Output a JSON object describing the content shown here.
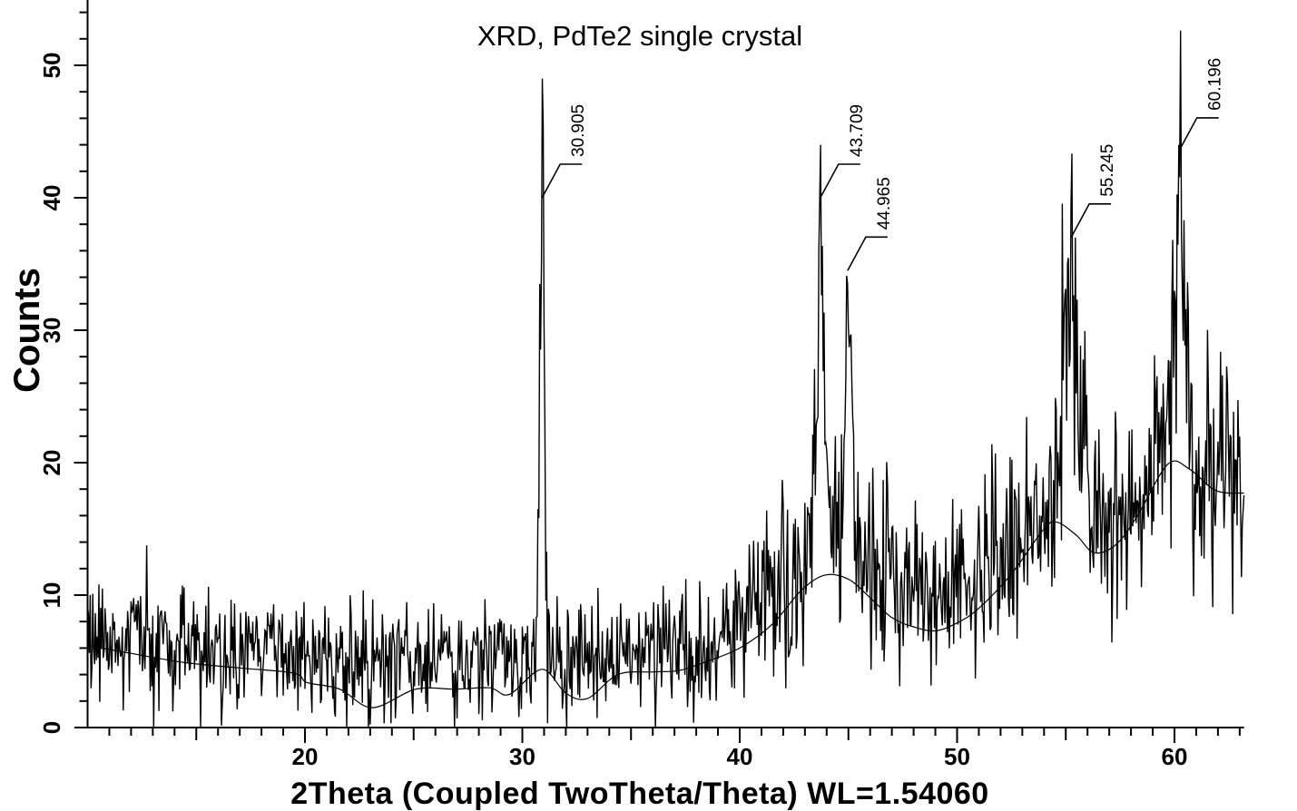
{
  "chart_data": {
    "type": "line",
    "title": "XRD, PdTe2 single crystal",
    "xlabel": "2Theta (Coupled TwoTheta/Theta) WL=1.54060",
    "ylabel": "Counts",
    "xlim": [
      10,
      63.2
    ],
    "ylim": [
      0,
      54.9
    ],
    "x_major_ticks": [
      20,
      30,
      40,
      50,
      60
    ],
    "x_medium_step": 5,
    "x_minor_step": 1,
    "y_major_ticks": [
      0,
      10,
      20,
      30,
      40,
      50
    ],
    "y_minor_step": 2,
    "grid": false,
    "legend": null,
    "line_color": "#000000",
    "background_color": "#ffffff",
    "peak_annotations": [
      {
        "label": "30.905",
        "x": 30.905,
        "anchor_counts": 40.0,
        "top_counts": 49.0
      },
      {
        "label": "43.709",
        "x": 43.709,
        "anchor_counts": 40.0,
        "top_counts": 44.0
      },
      {
        "label": "44.965",
        "x": 44.965,
        "anchor_counts": 34.5,
        "top_counts": 33.5
      },
      {
        "label": "55.245",
        "x": 55.245,
        "anchor_counts": 37.0,
        "top_counts": 39.5
      },
      {
        "label": "60.196",
        "x": 60.196,
        "anchor_counts": 43.5,
        "top_counts": 44.0
      }
    ],
    "signal_model": {
      "comment": "Noisy XRD trace = interp(mean_profile) + gaussian peaks + Poisson-like noise, seeded",
      "step_deg": 0.04,
      "seed": 9,
      "noise_scale": 1.0,
      "mean_profile": [
        [
          10,
          6.4
        ],
        [
          14,
          6.2
        ],
        [
          18,
          5.8
        ],
        [
          22,
          5.2
        ],
        [
          25,
          5.0
        ],
        [
          28,
          5.2
        ],
        [
          30.4,
          5.6
        ],
        [
          31.5,
          5.6
        ],
        [
          33,
          5.3
        ],
        [
          35,
          5.3
        ],
        [
          37,
          5.5
        ],
        [
          38.5,
          6.0
        ],
        [
          39.5,
          7.2
        ],
        [
          40.5,
          9.2
        ],
        [
          41.5,
          10.6
        ],
        [
          42.5,
          11.5
        ],
        [
          43.3,
          14.0
        ],
        [
          44.3,
          16.0
        ],
        [
          45.6,
          13.0
        ],
        [
          46.5,
          12.0
        ],
        [
          47.5,
          11.3
        ],
        [
          48.5,
          10.4
        ],
        [
          49.5,
          10.5
        ],
        [
          50.5,
          11.5
        ],
        [
          51.5,
          12.5
        ],
        [
          52.75,
          14.5
        ],
        [
          53.5,
          14.5
        ],
        [
          54.3,
          17.5
        ],
        [
          55.25,
          21.0
        ],
        [
          56.2,
          16.5
        ],
        [
          57.2,
          15.5
        ],
        [
          58.2,
          16.0
        ],
        [
          59.2,
          19.5
        ],
        [
          60.2,
          23.0
        ],
        [
          61.2,
          17.5
        ],
        [
          62.1,
          20.5
        ],
        [
          63.2,
          19.5
        ]
      ],
      "peaks": [
        {
          "center": 30.905,
          "height": 42,
          "sigma": 0.1
        },
        {
          "center": 43.709,
          "height": 26,
          "sigma": 0.14
        },
        {
          "center": 44.965,
          "height": 15,
          "sigma": 0.14
        },
        {
          "center": 55.245,
          "height": 12,
          "sigma": 0.28
        },
        {
          "center": 60.196,
          "height": 14,
          "sigma": 0.3
        }
      ]
    },
    "background_curve": [
      [
        10,
        6.2
      ],
      [
        12,
        5.6
      ],
      [
        14.5,
        4.9
      ],
      [
        17,
        4.5
      ],
      [
        19.5,
        4.1
      ],
      [
        20.1,
        3.4
      ],
      [
        21.6,
        2.9
      ],
      [
        23.1,
        1.5
      ],
      [
        25.1,
        2.9
      ],
      [
        26.9,
        2.9
      ],
      [
        28.5,
        3.0
      ],
      [
        29.4,
        2.5
      ],
      [
        30.9,
        4.4
      ],
      [
        32,
        2.6
      ],
      [
        33,
        2.2
      ],
      [
        34.4,
        4.0
      ],
      [
        36,
        4.2
      ],
      [
        37.2,
        4.3
      ],
      [
        38.5,
        5.0
      ],
      [
        40,
        6.0
      ],
      [
        41.5,
        7.8
      ],
      [
        42.8,
        10.3
      ],
      [
        43.9,
        11.5
      ],
      [
        45,
        11.2
      ],
      [
        46,
        9.8
      ],
      [
        47,
        8.3
      ],
      [
        48,
        7.6
      ],
      [
        49,
        7.3
      ],
      [
        50,
        7.9
      ],
      [
        51,
        9.0
      ],
      [
        52.5,
        11.6
      ],
      [
        54.0,
        15.0
      ],
      [
        54.6,
        15.5
      ],
      [
        55.5,
        14.5
      ],
      [
        56.3,
        13.2
      ],
      [
        57.3,
        13.8
      ],
      [
        58.3,
        16.0
      ],
      [
        59.7,
        19.9
      ],
      [
        60.7,
        19.5
      ],
      [
        61.9,
        17.9
      ],
      [
        63.2,
        17.7
      ]
    ]
  }
}
